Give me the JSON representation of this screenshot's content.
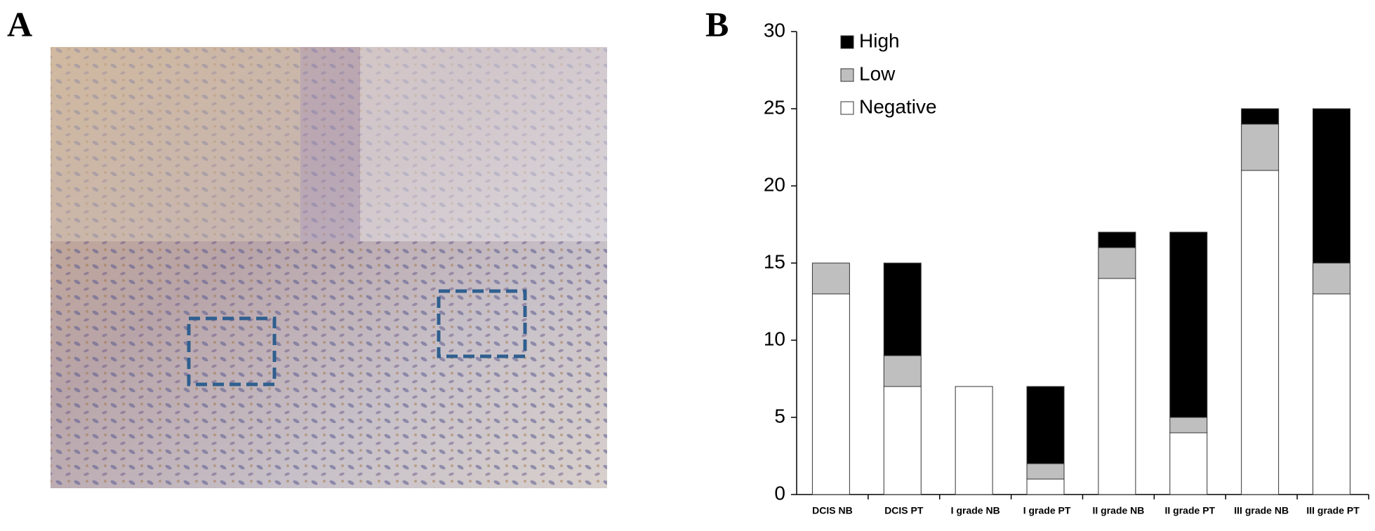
{
  "panels": {
    "a": "A",
    "b": "B"
  },
  "chart_data": {
    "type": "stacked_bar",
    "categories": [
      "DCIS NB",
      "DCIS PT",
      "I grade NB",
      "I grade PT",
      "II grade NB",
      "II grade PT",
      "III grade NB",
      "III grade PT"
    ],
    "series": [
      {
        "name": "High",
        "color": "#000000",
        "values": [
          0,
          6,
          0,
          5,
          1,
          12,
          1,
          10
        ]
      },
      {
        "name": "Low",
        "color": "#bfbfbf",
        "values": [
          2,
          2,
          0,
          1,
          2,
          1,
          3,
          2
        ]
      },
      {
        "name": "Negative",
        "color": "#ffffff",
        "values": [
          13,
          7,
          7,
          1,
          14,
          4,
          21,
          13
        ]
      }
    ],
    "ylim": [
      0,
      30
    ],
    "yticks": [
      0,
      5,
      10,
      15,
      20,
      25,
      30
    ],
    "legend": "upper-left"
  }
}
